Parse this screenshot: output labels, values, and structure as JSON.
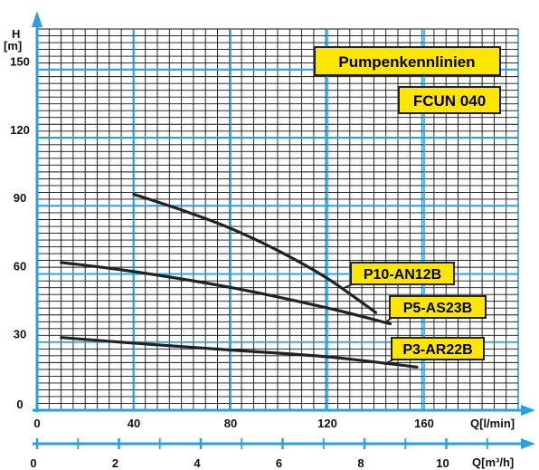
{
  "chart_data": {
    "type": "line",
    "title": "Pumpenkennlinien",
    "subtitle": "FCUN 040",
    "xlabel": "Q[l/min]",
    "x2label": "Q[m³/h]",
    "ylabel_top": "H",
    "ylabel_bottom": "[m]",
    "xlim": [
      0,
      200
    ],
    "ylim": [
      0,
      170
    ],
    "x2lim": [
      0,
      12
    ],
    "xticks": [
      "0",
      "40",
      "80",
      "120",
      "160"
    ],
    "x2ticks": [
      "0",
      "2",
      "4",
      "6",
      "8",
      "10"
    ],
    "yticks": [
      "0",
      "30",
      "60",
      "90",
      "120",
      "150"
    ],
    "grid": true,
    "colors": {
      "grid": "#2b9fe0",
      "axis": "#2b9fe0",
      "curve": "#222222",
      "label_fill": "#ffe600",
      "label_border": "#222222"
    },
    "series": [
      {
        "name": "P10-AN12B",
        "x": [
          40,
          60,
          80,
          100,
          120,
          140
        ],
        "y": [
          95,
          88,
          80,
          70,
          58,
          43
        ]
      },
      {
        "name": "P5-AS23B",
        "x": [
          10,
          40,
          80,
          120,
          146
        ],
        "y": [
          65,
          61,
          54,
          45,
          38
        ]
      },
      {
        "name": "P3-AR22B",
        "x": [
          10,
          40,
          80,
          120,
          157
        ],
        "y": [
          32,
          29.5,
          26.5,
          23.5,
          19
        ]
      }
    ]
  }
}
